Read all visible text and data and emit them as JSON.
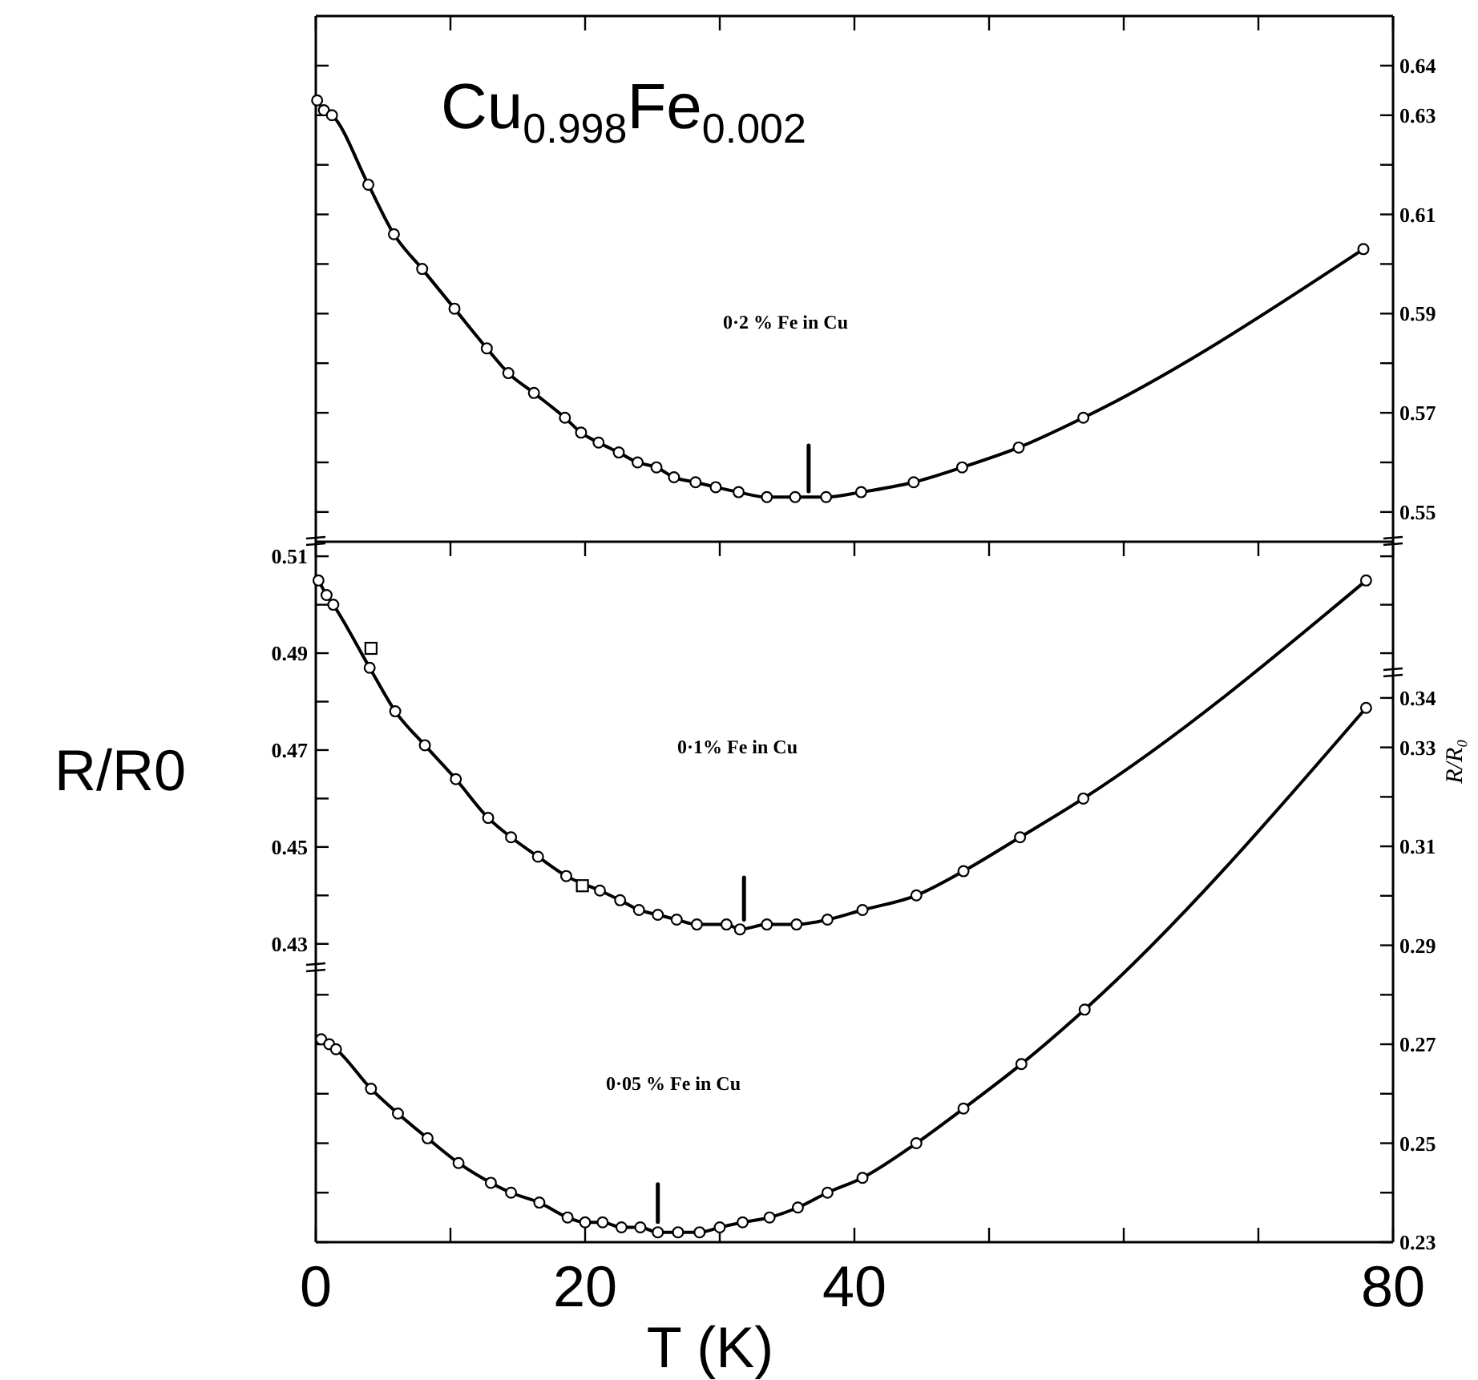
{
  "chart_data": [
    {
      "type": "line",
      "title": "Cu$_{0.998}$Fe$_{0.002}$",
      "xlim": [
        0,
        80
      ],
      "xticks": [
        0,
        {
          "value": 10,
          "label": null
        },
        20,
        {
          "value": 30,
          "label": null
        },
        40,
        {
          "value": 50,
          "label": null
        },
        {
          "value": 60,
          "label": null
        },
        {
          "value": 70,
          "label": null
        },
        80
      ],
      "y2lim": [
        0.544,
        0.65
      ],
      "y2ticks": [
        0.64,
        0.63,
        {
          "value": 0.62,
          "label": null
        },
        0.61,
        {
          "value": 0.6,
          "label": null
        },
        0.59,
        {
          "value": 0.58,
          "label": null
        },
        0.57,
        {
          "value": 0.56,
          "label": null
        },
        0.55
      ],
      "tick_labels": "y",
      "marker": "circle",
      "annotations": [
        "0·2 % Fe in Cu"
      ],
      "series": [
        {
          "axis": "y2",
          "color": "#000000",
          "x": [
            0.1,
            0.6,
            1.2,
            3.9,
            5.8,
            7.9,
            10.3,
            12.7,
            14.3,
            16.2,
            18.5,
            19.7,
            21.0,
            22.5,
            23.9,
            25.3,
            26.6,
            28.2,
            29.7,
            31.4,
            33.5,
            35.6,
            37.9,
            40.5,
            44.4,
            48.0,
            52.2,
            57.0,
            77.8
          ],
          "values": [
            0.633,
            0.631,
            0.63,
            0.616,
            0.606,
            0.599,
            0.591,
            0.583,
            0.578,
            0.574,
            0.569,
            0.566,
            0.564,
            0.562,
            0.56,
            0.559,
            0.557,
            0.556,
            0.555,
            0.554,
            0.553,
            0.553,
            0.553,
            0.554,
            0.556,
            0.559,
            0.563,
            0.569,
            0.603
          ]
        },
        {
          "axis": "y2",
          "marker": "none",
          "color": "#000000",
          "x": [
            36.6,
            36.6
          ],
          "values": [
            0.5542,
            0.5634
          ]
        }
      ]
    },
    {
      "type": "line",
      "ylabel": "R/R0",
      "xlim": [
        0,
        80
      ],
      "xticks": [
        0,
        {
          "value": 10,
          "label": null
        },
        20,
        {
          "value": 30,
          "label": null
        },
        40,
        {
          "value": 50,
          "label": null
        },
        {
          "value": 60,
          "label": null
        },
        {
          "value": 70,
          "label": null
        },
        80
      ],
      "ylim": [
        0.425,
        0.513
      ],
      "yticks": [
        0.51,
        {
          "value": 0.5,
          "label": null
        },
        0.49,
        {
          "value": 0.48,
          "label": null
        },
        0.47,
        {
          "value": 0.46,
          "label": null
        },
        0.45,
        {
          "value": 0.44,
          "label": null
        },
        0.43
      ],
      "tick_labels": "y",
      "marker": "circle",
      "annotations": [
        "0·1% Fe in Cu"
      ],
      "series": [
        {
          "color": "#000000",
          "x": [
            0.2,
            0.8,
            1.3,
            4.0,
            5.9,
            8.1,
            10.4,
            12.8,
            14.5,
            16.5,
            18.6,
            21.1,
            22.6,
            24.0,
            25.4,
            26.8,
            28.3,
            30.5,
            31.5,
            33.5,
            35.7,
            38.0,
            40.6,
            44.6,
            48.1,
            52.3,
            57.0,
            78.0
          ],
          "values": [
            0.505,
            0.502,
            0.5,
            0.487,
            0.478,
            0.471,
            0.464,
            0.456,
            0.452,
            0.448,
            0.444,
            0.441,
            0.439,
            0.437,
            0.436,
            0.435,
            0.434,
            0.434,
            0.433,
            0.434,
            0.434,
            0.435,
            0.437,
            0.44,
            0.445,
            0.452,
            0.46,
            0.505
          ]
        },
        {
          "type": "scatter",
          "marker": "square",
          "color": "#000000",
          "x": [
            4.1,
            19.8
          ],
          "values": [
            0.491,
            0.442
          ]
        },
        {
          "marker": "none",
          "color": "#000000",
          "x": [
            31.8,
            31.8
          ],
          "values": [
            0.435,
            0.4437
          ]
        }
      ]
    },
    {
      "type": "line",
      "xlabel": "T (K)",
      "y2label": "R/R₀",
      "xlim": [
        0,
        80
      ],
      "xticks": [
        0,
        {
          "value": 10,
          "label": null
        },
        20,
        {
          "value": 30,
          "label": null
        },
        40,
        {
          "value": 50,
          "label": null
        },
        {
          "value": 60,
          "label": null
        },
        {
          "value": 70,
          "label": null
        },
        80
      ],
      "y2lim": [
        0.23,
        0.345
      ],
      "y2ticks": [
        0.34,
        0.33,
        {
          "value": 0.32,
          "label": null
        },
        0.31,
        {
          "value": 0.3,
          "label": null
        },
        0.29,
        {
          "value": 0.28,
          "label": null
        },
        0.27,
        {
          "value": 0.26,
          "label": null
        },
        0.25,
        {
          "value": 0.24,
          "label": null
        },
        0.23
      ],
      "marker": "circle",
      "annotations": [
        "0·05 % Fe in Cu"
      ],
      "series": [
        {
          "axis": "y2",
          "color": "#000000",
          "x": [
            0.4,
            1.0,
            1.5,
            4.1,
            6.1,
            8.3,
            10.6,
            13.0,
            14.5,
            16.6,
            18.7,
            20.0,
            21.3,
            22.7,
            24.1,
            25.4,
            26.9,
            28.5,
            30.0,
            31.7,
            33.7,
            35.8,
            38.0,
            40.6,
            44.6,
            48.1,
            52.4,
            57.1,
            78.0
          ],
          "values": [
            0.271,
            0.27,
            0.269,
            0.261,
            0.256,
            0.251,
            0.246,
            0.242,
            0.24,
            0.238,
            0.235,
            0.234,
            0.234,
            0.233,
            0.233,
            0.232,
            0.232,
            0.232,
            0.233,
            0.234,
            0.235,
            0.237,
            0.24,
            0.243,
            0.25,
            0.257,
            0.266,
            0.277,
            0.338
          ]
        },
        {
          "axis": "y2",
          "marker": "none",
          "color": "#000000",
          "x": [
            25.4,
            25.4
          ],
          "values": [
            0.2341,
            0.2417
          ]
        }
      ]
    }
  ]
}
